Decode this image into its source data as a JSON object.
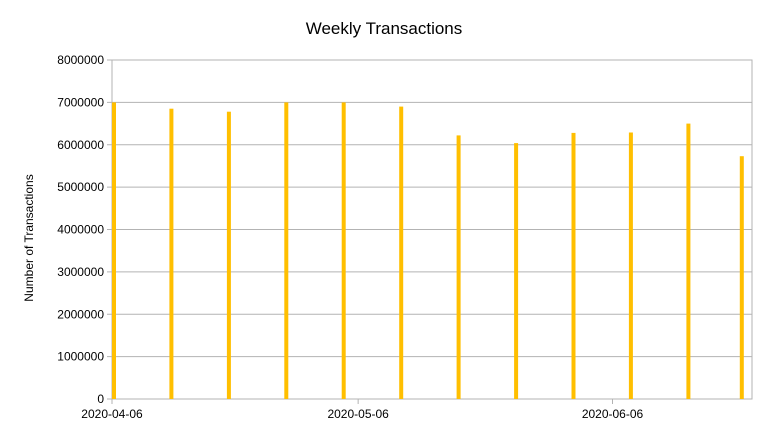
{
  "chart_data": {
    "type": "bar",
    "title": "Weekly Transactions",
    "xlabel": "",
    "ylabel": "Number of Transactions",
    "x": [
      "2020-04-06",
      "2020-04-13",
      "2020-04-20",
      "2020-04-27",
      "2020-05-04",
      "2020-05-11",
      "2020-05-18",
      "2020-05-25",
      "2020-06-01",
      "2020-06-08",
      "2020-06-15",
      "2020-06-22"
    ],
    "values": [
      7000000,
      6850000,
      6780000,
      7000000,
      7000000,
      6900000,
      6220000,
      6040000,
      6280000,
      6290000,
      6500000,
      5730000
    ],
    "xlim": [
      "2020-04-06",
      "2020-06-23"
    ],
    "ylim": [
      0,
      8000000
    ],
    "yticks": [
      0,
      1000000,
      2000000,
      3000000,
      4000000,
      5000000,
      6000000,
      7000000,
      8000000
    ],
    "ytick_labels": [
      "0",
      "1000000",
      "2000000",
      "3000000",
      "4000000",
      "5000000",
      "6000000",
      "7000000",
      "8000000"
    ],
    "xtick_labels": [
      "2020-04-06",
      "2020-05-06",
      "2020-06-06"
    ],
    "xtick_dates": [
      "2020-04-06",
      "2020-05-06",
      "2020-06-06"
    ],
    "grid": true,
    "legend": "none",
    "bar_color": "#ffbf00"
  }
}
